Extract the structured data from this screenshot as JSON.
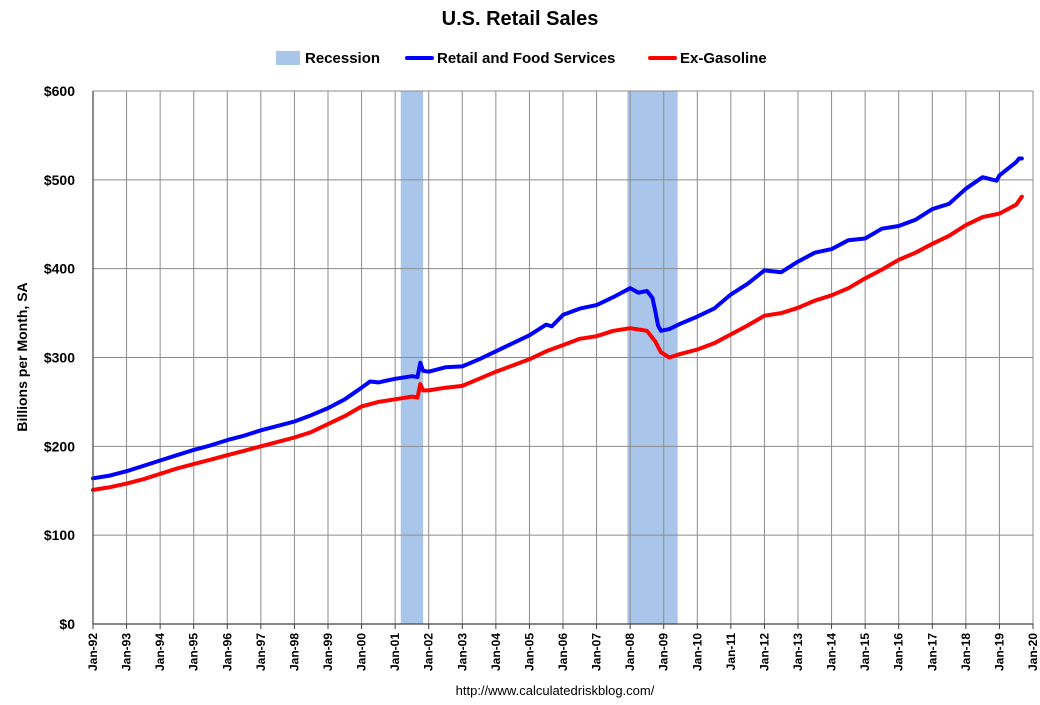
{
  "chart_data": {
    "type": "line",
    "title": "U.S. Retail Sales",
    "ylabel": "Billions per Month, SA",
    "xlabel": "",
    "source": "http://www.calculatedriskblog.com/",
    "ylim": [
      0,
      600
    ],
    "xlim": [
      "1992-01",
      "2020-01"
    ],
    "y_ticks": [
      "$0",
      "$100",
      "$200",
      "$300",
      "$400",
      "$500",
      "$600"
    ],
    "x_ticks": [
      "Jan-92",
      "Jan-93",
      "Jan-94",
      "Jan-95",
      "Jan-96",
      "Jan-97",
      "Jan-98",
      "Jan-99",
      "Jan-00",
      "Jan-01",
      "Jan-02",
      "Jan-03",
      "Jan-04",
      "Jan-05",
      "Jan-06",
      "Jan-07",
      "Jan-08",
      "Jan-09",
      "Jan-10",
      "Jan-11",
      "Jan-12",
      "Jan-13",
      "Jan-14",
      "Jan-15",
      "Jan-16",
      "Jan-17",
      "Jan-18",
      "Jan-19",
      "Jan-20"
    ],
    "grid": true,
    "legend_position": "top",
    "recessions": [
      {
        "start": "2001-03",
        "end": "2001-11"
      },
      {
        "start": "2007-12",
        "end": "2009-06"
      }
    ],
    "legend": [
      {
        "name": "Recession",
        "kind": "patch",
        "color": "#a9c6ea"
      },
      {
        "name": "Retail and Food Services",
        "kind": "line",
        "color": "#0000ff"
      },
      {
        "name": "Ex-Gasoline",
        "kind": "line",
        "color": "#ff0000"
      }
    ],
    "series": [
      {
        "name": "Retail and Food Services",
        "color": "#0000ff",
        "points": [
          [
            "1992-01",
            164
          ],
          [
            "1992-07",
            167
          ],
          [
            "1993-01",
            172
          ],
          [
            "1993-07",
            178
          ],
          [
            "1994-01",
            184
          ],
          [
            "1994-07",
            190
          ],
          [
            "1995-01",
            196
          ],
          [
            "1995-07",
            201
          ],
          [
            "1996-01",
            207
          ],
          [
            "1996-07",
            212
          ],
          [
            "1997-01",
            218
          ],
          [
            "1997-07",
            223
          ],
          [
            "1998-01",
            228
          ],
          [
            "1998-07",
            235
          ],
          [
            "1999-01",
            243
          ],
          [
            "1999-07",
            253
          ],
          [
            "2000-01",
            266
          ],
          [
            "2000-04",
            273
          ],
          [
            "2000-07",
            272
          ],
          [
            "2001-01",
            276
          ],
          [
            "2001-07",
            279
          ],
          [
            "2001-09",
            278
          ],
          [
            "2001-10",
            294
          ],
          [
            "2001-11",
            285
          ],
          [
            "2002-01",
            284
          ],
          [
            "2002-07",
            289
          ],
          [
            "2003-01",
            290
          ],
          [
            "2003-07",
            298
          ],
          [
            "2004-01",
            307
          ],
          [
            "2004-07",
            316
          ],
          [
            "2005-01",
            325
          ],
          [
            "2005-07",
            337
          ],
          [
            "2005-09",
            335
          ],
          [
            "2006-01",
            348
          ],
          [
            "2006-07",
            355
          ],
          [
            "2007-01",
            359
          ],
          [
            "2007-07",
            368
          ],
          [
            "2008-01",
            378
          ],
          [
            "2008-04",
            373
          ],
          [
            "2008-07",
            375
          ],
          [
            "2008-09",
            367
          ],
          [
            "2008-10",
            352
          ],
          [
            "2008-11",
            336
          ],
          [
            "2008-12",
            330
          ],
          [
            "2009-03",
            332
          ],
          [
            "2009-07",
            338
          ],
          [
            "2010-01",
            346
          ],
          [
            "2010-07",
            355
          ],
          [
            "2011-01",
            371
          ],
          [
            "2011-07",
            383
          ],
          [
            "2012-01",
            398
          ],
          [
            "2012-07",
            396
          ],
          [
            "2013-01",
            408
          ],
          [
            "2013-07",
            418
          ],
          [
            "2014-01",
            422
          ],
          [
            "2014-07",
            432
          ],
          [
            "2015-01",
            434
          ],
          [
            "2015-07",
            445
          ],
          [
            "2016-01",
            448
          ],
          [
            "2016-07",
            455
          ],
          [
            "2017-01",
            467
          ],
          [
            "2017-07",
            473
          ],
          [
            "2018-01",
            490
          ],
          [
            "2018-07",
            503
          ],
          [
            "2018-12",
            499
          ],
          [
            "2019-01",
            505
          ],
          [
            "2019-07",
            520
          ],
          [
            "2019-08",
            524
          ],
          [
            "2019-09",
            524
          ]
        ]
      },
      {
        "name": "Ex-Gasoline",
        "color": "#ff0000",
        "points": [
          [
            "1992-01",
            151
          ],
          [
            "1992-07",
            154
          ],
          [
            "1993-01",
            158
          ],
          [
            "1993-07",
            163
          ],
          [
            "1994-01",
            169
          ],
          [
            "1994-07",
            175
          ],
          [
            "1995-01",
            180
          ],
          [
            "1995-07",
            185
          ],
          [
            "1996-01",
            190
          ],
          [
            "1996-07",
            195
          ],
          [
            "1997-01",
            200
          ],
          [
            "1997-07",
            205
          ],
          [
            "1998-01",
            210
          ],
          [
            "1998-07",
            216
          ],
          [
            "1999-01",
            225
          ],
          [
            "1999-07",
            234
          ],
          [
            "2000-01",
            245
          ],
          [
            "2000-07",
            250
          ],
          [
            "2001-01",
            253
          ],
          [
            "2001-07",
            256
          ],
          [
            "2001-09",
            255
          ],
          [
            "2001-10",
            270
          ],
          [
            "2001-11",
            263
          ],
          [
            "2002-01",
            263
          ],
          [
            "2002-07",
            266
          ],
          [
            "2003-01",
            268
          ],
          [
            "2003-07",
            276
          ],
          [
            "2004-01",
            284
          ],
          [
            "2004-07",
            291
          ],
          [
            "2005-01",
            298
          ],
          [
            "2005-07",
            307
          ],
          [
            "2006-01",
            314
          ],
          [
            "2006-07",
            321
          ],
          [
            "2007-01",
            324
          ],
          [
            "2007-07",
            330
          ],
          [
            "2008-01",
            333
          ],
          [
            "2008-07",
            330
          ],
          [
            "2008-10",
            318
          ],
          [
            "2008-12",
            306
          ],
          [
            "2009-03",
            300
          ],
          [
            "2009-07",
            304
          ],
          [
            "2010-01",
            309
          ],
          [
            "2010-07",
            316
          ],
          [
            "2011-01",
            326
          ],
          [
            "2011-07",
            336
          ],
          [
            "2012-01",
            347
          ],
          [
            "2012-07",
            350
          ],
          [
            "2013-01",
            356
          ],
          [
            "2013-07",
            364
          ],
          [
            "2014-01",
            370
          ],
          [
            "2014-07",
            378
          ],
          [
            "2015-01",
            389
          ],
          [
            "2015-07",
            399
          ],
          [
            "2016-01",
            410
          ],
          [
            "2016-07",
            418
          ],
          [
            "2017-01",
            428
          ],
          [
            "2017-07",
            437
          ],
          [
            "2018-01",
            449
          ],
          [
            "2018-07",
            458
          ],
          [
            "2019-01",
            462
          ],
          [
            "2019-07",
            472
          ],
          [
            "2019-09",
            481
          ]
        ]
      }
    ]
  }
}
